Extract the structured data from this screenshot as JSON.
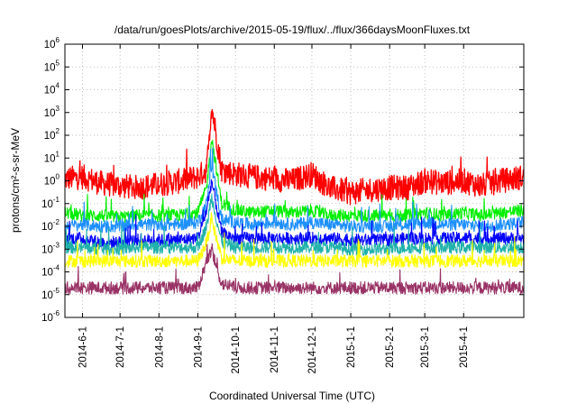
{
  "chart_data": {
    "type": "line",
    "title": "/data/run/goesPlots/archive/2015-05-19/flux/../flux/366daysMoonFluxes.txt",
    "xlabel": "Coordinated Universal Time (UTC)",
    "ylabel": "protons/cm²-s-sr-MeV",
    "yscale": "log",
    "xlim": [
      "2014-05-18",
      "2015-05-19"
    ],
    "ylim": [
      1e-06,
      1000000.0
    ],
    "grid": true,
    "x_ticks": [
      "2014-6-1",
      "2014-7-1",
      "2014-8-1",
      "2014-9-1",
      "2014-10-1",
      "2014-11-1",
      "2014-12-1",
      "2015-1-1",
      "2015-2-1",
      "2015-3-1",
      "2015-4-1"
    ],
    "x_tick_dates": [
      "2014-06-01",
      "2014-07-01",
      "2014-08-01",
      "2014-09-01",
      "2014-10-01",
      "2014-11-01",
      "2014-12-01",
      "2015-01-01",
      "2015-02-01",
      "2015-03-01",
      "2015-04-01"
    ],
    "y_ticks": [
      {
        "base": "10",
        "exp": "-6",
        "value": 1e-06
      },
      {
        "base": "10",
        "exp": "-5",
        "value": 1e-05
      },
      {
        "base": "10",
        "exp": "-4",
        "value": 0.0001
      },
      {
        "base": "10",
        "exp": "-3",
        "value": 0.001
      },
      {
        "base": "10",
        "exp": "-2",
        "value": 0.01
      },
      {
        "base": "10",
        "exp": "-1",
        "value": 0.1
      },
      {
        "base": "10",
        "exp": "0",
        "value": 1
      },
      {
        "base": "10",
        "exp": "1",
        "value": 10
      },
      {
        "base": "10",
        "exp": "2",
        "value": 100
      },
      {
        "base": "10",
        "exp": "3",
        "value": 1000
      },
      {
        "base": "10",
        "exp": "4",
        "value": 10000
      },
      {
        "base": "10",
        "exp": "5",
        "value": 100000
      },
      {
        "base": "10",
        "exp": "6",
        "value": 1000000
      }
    ],
    "x": [
      "2014-05-18",
      "2014-06-01",
      "2014-06-15",
      "2014-07-01",
      "2014-07-15",
      "2014-08-01",
      "2014-08-15",
      "2014-09-01",
      "2014-09-08",
      "2014-09-12",
      "2014-09-20",
      "2014-10-01",
      "2014-10-15",
      "2014-11-01",
      "2014-11-15",
      "2014-12-01",
      "2014-12-15",
      "2015-01-01",
      "2015-01-15",
      "2015-02-01",
      "2015-02-15",
      "2015-03-01",
      "2015-03-15",
      "2015-04-01",
      "2015-04-15",
      "2015-05-01",
      "2015-05-19"
    ],
    "series": [
      {
        "color": "#ff0000",
        "values": [
          1.2,
          1.5,
          0.8,
          0.6,
          0.5,
          0.7,
          0.9,
          1.5,
          3,
          2000,
          3,
          2,
          1.5,
          1.2,
          1,
          2,
          0.5,
          0.3,
          0.4,
          0.5,
          0.5,
          1,
          0.8,
          1,
          0.6,
          1,
          1.5
        ]
      },
      {
        "color": "#00ee00",
        "values": [
          0.04,
          0.03,
          0.03,
          0.025,
          0.03,
          0.03,
          0.03,
          0.04,
          0.5,
          80,
          0.1,
          0.05,
          0.04,
          0.05,
          0.04,
          0.05,
          0.03,
          0.03,
          0.03,
          0.03,
          0.03,
          0.04,
          0.03,
          0.04,
          0.03,
          0.04,
          0.05
        ]
      },
      {
        "color": "#1e90ff",
        "values": [
          0.01,
          0.012,
          0.01,
          0.01,
          0.012,
          0.012,
          0.012,
          0.015,
          0.1,
          5,
          0.02,
          0.015,
          0.012,
          0.015,
          0.012,
          0.015,
          0.012,
          0.01,
          0.01,
          0.01,
          0.012,
          0.015,
          0.012,
          0.012,
          0.01,
          0.012,
          0.015
        ]
      },
      {
        "color": "#0000ff",
        "values": [
          0.003,
          0.003,
          0.002,
          0.002,
          0.0025,
          0.0025,
          0.0025,
          0.003,
          0.05,
          1,
          0.005,
          0.003,
          0.003,
          0.003,
          0.003,
          0.003,
          0.003,
          0.0025,
          0.0025,
          0.0025,
          0.003,
          0.003,
          0.003,
          0.003,
          0.003,
          0.003,
          0.003
        ]
      },
      {
        "color": "#20b2aa",
        "values": [
          0.0012,
          0.0012,
          0.001,
          0.001,
          0.0012,
          0.0012,
          0.0012,
          0.0012,
          0.01,
          0.2,
          0.002,
          0.0012,
          0.0012,
          0.0012,
          0.0012,
          0.0012,
          0.0012,
          0.001,
          0.001,
          0.001,
          0.0012,
          0.0012,
          0.0012,
          0.0012,
          0.0012,
          0.0012,
          0.0012
        ]
      },
      {
        "color": "#ffff00",
        "values": [
          0.0003,
          0.0003,
          0.0003,
          0.0003,
          0.0003,
          0.0003,
          0.0003,
          0.0003,
          0.002,
          0.02,
          0.0004,
          0.0003,
          0.0003,
          0.0003,
          0.0003,
          0.0003,
          0.0003,
          0.0003,
          0.0003,
          0.0003,
          0.0003,
          0.0003,
          0.0003,
          0.0003,
          0.0003,
          0.0003,
          0.0003
        ]
      },
      {
        "color": "#993366",
        "values": [
          2e-05,
          2e-05,
          2e-05,
          2e-05,
          2e-05,
          2e-05,
          2e-05,
          2e-05,
          0.0003,
          0.0008,
          3e-05,
          2e-05,
          2e-05,
          2e-05,
          2e-05,
          2e-05,
          2e-05,
          2e-05,
          2e-05,
          2e-05,
          2e-05,
          2e-05,
          2e-05,
          2e-05,
          2e-05,
          2e-05,
          2e-05
        ]
      }
    ]
  }
}
